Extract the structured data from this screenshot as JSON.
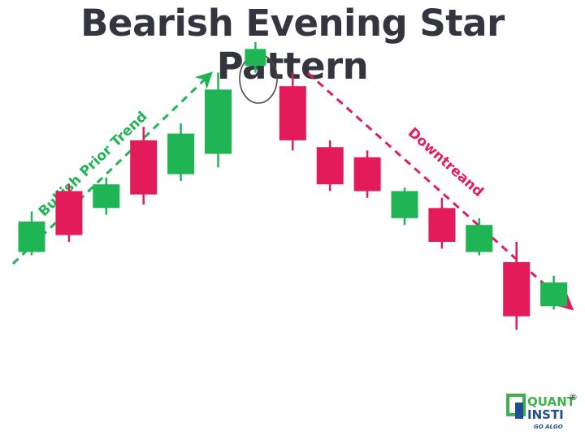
{
  "title": "Bearish Evening Star Pattern",
  "colors": {
    "bullish": "#20b554",
    "bearish": "#e41b5b",
    "uptrend_arrow": "#20b554",
    "downtrend_arrow": "#e41b5b",
    "circle": "#4a4a52",
    "title": "#35353f",
    "logo_green": "#3cb24a",
    "logo_blue": "#1f4f8f"
  },
  "annotations": {
    "uptrend_label": "Bullish Prior Trend",
    "downtrend_label": "Downtreand"
  },
  "candles": [
    {
      "direction": "bullish",
      "open": 44,
      "close": 53,
      "high": 56,
      "low": 43
    },
    {
      "direction": "bearish",
      "open": 62,
      "close": 49,
      "high": 64,
      "low": 47
    },
    {
      "direction": "bullish",
      "open": 57,
      "close": 64,
      "high": 66,
      "low": 55
    },
    {
      "direction": "bearish",
      "open": 77,
      "close": 61,
      "high": 81,
      "low": 58
    },
    {
      "direction": "bullish",
      "open": 67,
      "close": 79,
      "high": 82,
      "low": 65
    },
    {
      "direction": "bullish",
      "open": 73,
      "close": 92,
      "high": 97,
      "low": 69
    },
    {
      "direction": "bullish",
      "open": 99,
      "close": 104,
      "high": 106,
      "low": 97,
      "highlighted": true
    },
    {
      "direction": "bearish",
      "open": 93,
      "close": 77,
      "high": 97,
      "low": 74
    },
    {
      "direction": "bearish",
      "open": 75,
      "close": 64,
      "high": 77,
      "low": 62
    },
    {
      "direction": "bearish",
      "open": 72,
      "close": 62,
      "high": 74,
      "low": 60
    },
    {
      "direction": "bullish",
      "open": 54,
      "close": 62,
      "high": 63,
      "low": 52
    },
    {
      "direction": "bearish",
      "open": 57,
      "close": 47,
      "high": 60,
      "low": 45
    },
    {
      "direction": "bullish",
      "open": 44,
      "close": 52,
      "high": 54,
      "low": 43
    },
    {
      "direction": "bearish",
      "open": 41,
      "close": 25,
      "high": 47,
      "low": 21
    },
    {
      "direction": "bullish",
      "open": 28,
      "close": 35,
      "high": 37,
      "low": 27
    }
  ],
  "logo": {
    "line1": "QUANT",
    "line2": "INSTI",
    "tagline": "GO ALGO",
    "registered": "®"
  }
}
